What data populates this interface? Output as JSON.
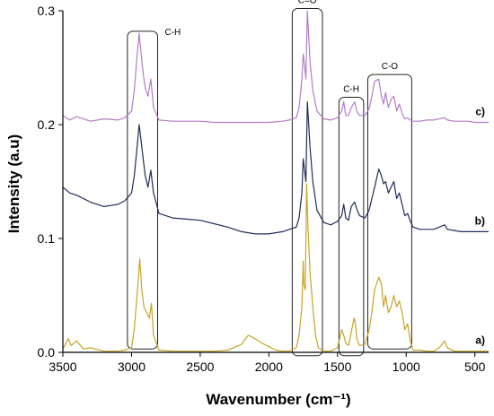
{
  "chart_data": {
    "type": "line",
    "title": "",
    "xlabel": "Wavenumber (cm⁻¹)",
    "ylabel": "Intensity (a.u)",
    "xlim": [
      3500,
      400
    ],
    "ylim": [
      0.0,
      0.3
    ],
    "x_ticks": [
      3500,
      3000,
      2500,
      2000,
      1500,
      1000,
      500
    ],
    "x_tick_labels": [
      "3500",
      "3000",
      "2500",
      "2000",
      "1500",
      "1000",
      "500"
    ],
    "y_ticks": [
      0.0,
      0.1,
      0.2,
      0.3
    ],
    "y_tick_labels": [
      "0.0",
      "0.1",
      "0.2",
      "0.3"
    ],
    "grid": false,
    "series": [
      {
        "label": "a)",
        "color": "#c9a227",
        "x": [
          3500,
          3460,
          3440,
          3400,
          3350,
          3300,
          3200,
          3100,
          3050,
          3000,
          2980,
          2960,
          2940,
          2925,
          2910,
          2890,
          2870,
          2855,
          2840,
          2800,
          2700,
          2600,
          2500,
          2400,
          2300,
          2200,
          2150,
          2100,
          2050,
          2000,
          1950,
          1900,
          1850,
          1800,
          1780,
          1760,
          1750,
          1745,
          1735,
          1725,
          1715,
          1700,
          1680,
          1660,
          1640,
          1600,
          1550,
          1500,
          1470,
          1455,
          1440,
          1420,
          1400,
          1380,
          1370,
          1360,
          1340,
          1300,
          1270,
          1250,
          1230,
          1200,
          1180,
          1165,
          1150,
          1130,
          1110,
          1090,
          1070,
          1050,
          1030,
          1010,
          990,
          970,
          950,
          900,
          850,
          800,
          760,
          720,
          700,
          650,
          600,
          550,
          500,
          450,
          400
        ],
        "y": [
          0.003,
          0.012,
          0.006,
          0.01,
          0.003,
          0.004,
          0.001,
          0.001,
          0.002,
          0.004,
          0.02,
          0.05,
          0.082,
          0.055,
          0.04,
          0.035,
          0.03,
          0.043,
          0.015,
          0.002,
          0.001,
          0.001,
          0.001,
          0.001,
          0.002,
          0.007,
          0.015,
          0.012,
          0.008,
          0.005,
          0.002,
          0.001,
          0.001,
          0.004,
          0.015,
          0.04,
          0.08,
          0.06,
          0.055,
          0.148,
          0.11,
          0.07,
          0.04,
          0.015,
          0.004,
          0.001,
          0.001,
          0.004,
          0.02,
          0.015,
          0.008,
          0.006,
          0.018,
          0.03,
          0.025,
          0.012,
          0.006,
          0.007,
          0.02,
          0.035,
          0.055,
          0.066,
          0.06,
          0.04,
          0.05,
          0.035,
          0.04,
          0.05,
          0.04,
          0.045,
          0.035,
          0.02,
          0.025,
          0.01,
          0.002,
          0.002,
          0.001,
          0.001,
          0.004,
          0.01,
          0.004,
          0.001,
          0.001,
          0.001,
          0.001,
          0.001,
          0.001
        ]
      },
      {
        "label": "b)",
        "color": "#1f2d5a",
        "x": [
          3500,
          3450,
          3400,
          3300,
          3200,
          3100,
          3050,
          3000,
          2980,
          2960,
          2945,
          2930,
          2915,
          2900,
          2880,
          2860,
          2850,
          2840,
          2800,
          2700,
          2600,
          2500,
          2400,
          2300,
          2200,
          2100,
          2000,
          1900,
          1850,
          1800,
          1780,
          1760,
          1750,
          1740,
          1730,
          1720,
          1700,
          1680,
          1650,
          1600,
          1550,
          1500,
          1470,
          1455,
          1440,
          1420,
          1400,
          1375,
          1360,
          1340,
          1300,
          1270,
          1250,
          1230,
          1200,
          1180,
          1165,
          1150,
          1130,
          1110,
          1090,
          1070,
          1050,
          1030,
          1010,
          990,
          970,
          950,
          900,
          850,
          800,
          760,
          720,
          700,
          650,
          600,
          550,
          500,
          450,
          400
        ],
        "y": [
          0.145,
          0.14,
          0.138,
          0.132,
          0.128,
          0.13,
          0.133,
          0.14,
          0.155,
          0.18,
          0.2,
          0.185,
          0.17,
          0.155,
          0.145,
          0.16,
          0.15,
          0.14,
          0.122,
          0.118,
          0.117,
          0.116,
          0.113,
          0.11,
          0.106,
          0.104,
          0.104,
          0.106,
          0.108,
          0.11,
          0.118,
          0.14,
          0.17,
          0.16,
          0.15,
          0.22,
          0.18,
          0.15,
          0.125,
          0.114,
          0.112,
          0.115,
          0.12,
          0.13,
          0.118,
          0.116,
          0.128,
          0.132,
          0.126,
          0.12,
          0.118,
          0.125,
          0.135,
          0.145,
          0.161,
          0.155,
          0.148,
          0.15,
          0.14,
          0.145,
          0.15,
          0.135,
          0.14,
          0.13,
          0.12,
          0.122,
          0.115,
          0.11,
          0.108,
          0.108,
          0.108,
          0.11,
          0.112,
          0.108,
          0.107,
          0.106,
          0.106,
          0.106,
          0.106,
          0.106
        ]
      },
      {
        "label": "c)",
        "color": "#b57bc9",
        "x": [
          3500,
          3450,
          3400,
          3300,
          3200,
          3100,
          3050,
          3000,
          2980,
          2960,
          2945,
          2930,
          2915,
          2900,
          2880,
          2860,
          2850,
          2840,
          2800,
          2700,
          2600,
          2500,
          2400,
          2300,
          2200,
          2100,
          2000,
          1900,
          1850,
          1800,
          1780,
          1760,
          1750,
          1740,
          1730,
          1720,
          1700,
          1680,
          1650,
          1600,
          1550,
          1500,
          1470,
          1455,
          1440,
          1420,
          1400,
          1375,
          1360,
          1340,
          1300,
          1270,
          1250,
          1230,
          1200,
          1180,
          1165,
          1150,
          1130,
          1110,
          1090,
          1070,
          1050,
          1030,
          1010,
          990,
          970,
          950,
          900,
          850,
          800,
          760,
          720,
          700,
          650,
          600,
          550,
          500,
          450,
          400
        ],
        "y": [
          0.208,
          0.204,
          0.207,
          0.203,
          0.205,
          0.204,
          0.206,
          0.212,
          0.23,
          0.26,
          0.28,
          0.262,
          0.245,
          0.232,
          0.225,
          0.24,
          0.228,
          0.215,
          0.204,
          0.203,
          0.203,
          0.203,
          0.202,
          0.202,
          0.202,
          0.202,
          0.202,
          0.203,
          0.204,
          0.206,
          0.215,
          0.24,
          0.262,
          0.252,
          0.24,
          0.3,
          0.255,
          0.23,
          0.212,
          0.205,
          0.204,
          0.206,
          0.212,
          0.22,
          0.208,
          0.208,
          0.215,
          0.22,
          0.212,
          0.208,
          0.208,
          0.214,
          0.225,
          0.238,
          0.24,
          0.225,
          0.218,
          0.228,
          0.215,
          0.222,
          0.225,
          0.212,
          0.218,
          0.21,
          0.205,
          0.206,
          0.204,
          0.203,
          0.203,
          0.204,
          0.204,
          0.205,
          0.206,
          0.204,
          0.203,
          0.203,
          0.203,
          0.202,
          0.202,
          0.202
        ]
      }
    ],
    "regions": [
      {
        "label": "C-H",
        "x_from": 3030,
        "x_to": 2810,
        "y_bottom": 0.003,
        "y_top": 0.282
      },
      {
        "label": "C=O",
        "x_from": 1830,
        "x_to": 1610,
        "y_bottom": -0.003,
        "y_top": 0.302
      },
      {
        "label": "C-H",
        "x_from": 1490,
        "x_to": 1310,
        "y_bottom": -0.003,
        "y_top": 0.224
      },
      {
        "label": "C-O",
        "x_from": 1280,
        "x_to": 960,
        "y_bottom": 0.003,
        "y_top": 0.244
      }
    ]
  }
}
